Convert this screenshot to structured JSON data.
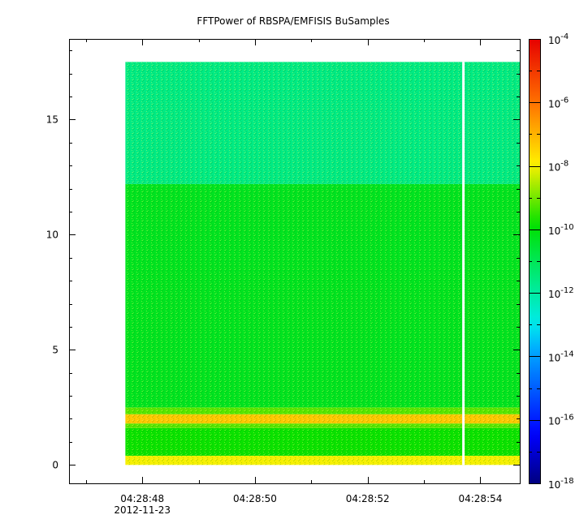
{
  "chart_data": {
    "type": "heatmap",
    "title": "FFTPower of RBSPA/EMFISIS  BuSamples",
    "xlabel": "",
    "ylabel": "",
    "x_tick_labels": [
      "04:28:48",
      "04:28:50",
      "04:28:52",
      "04:28:54"
    ],
    "x_date_label": "2012-11-23",
    "x_range_seconds": [
      46.7,
      54.7
    ],
    "data_range_seconds": [
      47.7,
      54.7
    ],
    "gap_seconds": 53.7,
    "y_ticks": [
      0,
      5,
      10,
      15
    ],
    "ylim": [
      -0.8,
      18.5
    ],
    "data_ylim": [
      0,
      17.5
    ],
    "colorbar": {
      "scale": "log",
      "range": [
        1e-18,
        0.0001
      ],
      "tick_exponents": [
        -18,
        -16,
        -14,
        -12,
        -10,
        -8,
        -6,
        -4
      ],
      "tick_base": "10"
    },
    "bands": [
      {
        "y_from": 0.0,
        "y_to": 0.4,
        "level": -8
      },
      {
        "y_from": 0.4,
        "y_to": 1.6,
        "level": -9.8
      },
      {
        "y_from": 1.6,
        "y_to": 1.8,
        "level": -9.2
      },
      {
        "y_from": 1.8,
        "y_to": 2.2,
        "level": -7.3
      },
      {
        "y_from": 2.2,
        "y_to": 2.5,
        "level": -9.2
      },
      {
        "y_from": 2.5,
        "y_to": 12.2,
        "level": -10.3
      },
      {
        "y_from": 12.2,
        "y_to": 17.5,
        "level": -11.6
      }
    ]
  }
}
